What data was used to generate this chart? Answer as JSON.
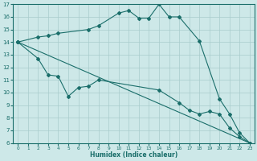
{
  "xlabel": "Humidex (Indice chaleur)",
  "bg_color": "#cde8e8",
  "grid_color": "#a8cccc",
  "line_color": "#1a6e6a",
  "xlim": [
    -0.5,
    23.5
  ],
  "ylim": [
    6,
    17
  ],
  "yticks": [
    6,
    7,
    8,
    9,
    10,
    11,
    12,
    13,
    14,
    15,
    16,
    17
  ],
  "xticks": [
    0,
    1,
    2,
    3,
    4,
    5,
    6,
    7,
    8,
    9,
    10,
    11,
    12,
    13,
    14,
    15,
    16,
    17,
    18,
    19,
    20,
    21,
    22,
    23
  ],
  "line1_x": [
    0,
    2,
    3,
    4,
    7,
    8,
    10,
    11,
    12,
    13,
    14,
    15,
    16,
    18,
    20,
    21,
    22,
    23
  ],
  "line1_y": [
    14.0,
    14.4,
    14.5,
    14.7,
    15.0,
    15.3,
    16.3,
    16.5,
    15.9,
    15.9,
    17.0,
    16.0,
    16.0,
    14.1,
    9.5,
    8.3,
    6.8,
    6.0
  ],
  "line2_x": [
    0,
    23
  ],
  "line2_y": [
    14.0,
    6.0
  ],
  "line3_x": [
    0,
    2,
    3,
    4,
    5,
    6,
    7,
    8,
    14,
    16,
    17,
    18,
    19,
    20,
    21,
    22,
    23
  ],
  "line3_y": [
    14.0,
    12.7,
    11.4,
    11.3,
    9.7,
    10.4,
    10.5,
    11.0,
    10.2,
    9.2,
    8.6,
    8.3,
    8.5,
    8.3,
    7.2,
    6.5,
    6.0
  ]
}
